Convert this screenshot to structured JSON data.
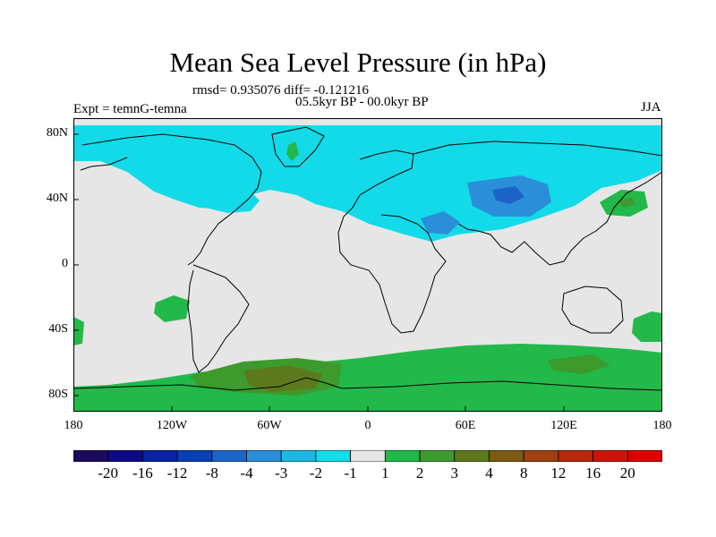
{
  "title": "Mean Sea Level Pressure (in hPa)",
  "subtitle": {
    "stats": "rmsd= 0.935076 diff= -0.121216",
    "period": "05.5kyr BP - 00.0kyr BP",
    "experiment": "Expt = temnG-temna",
    "season": "JJA"
  },
  "axes": {
    "lat_labels": [
      "80N",
      "40N",
      "0",
      "40S",
      "80S"
    ],
    "lon_labels": [
      "180",
      "120W",
      "60W",
      "0",
      "60E",
      "120E",
      "180"
    ]
  },
  "colorbar": {
    "labels": [
      "-20",
      "-16",
      "-12",
      "-8",
      "-4",
      "-3",
      "-2",
      "-1",
      "1",
      "2",
      "3",
      "4",
      "8",
      "12",
      "16",
      "20"
    ],
    "colors": [
      "#1c0a5e",
      "#0b0a86",
      "#0a22a8",
      "#0a40b6",
      "#1a64c8",
      "#2a8ed8",
      "#1cb8e0",
      "#13dae8",
      "#e6e6e6",
      "#22b84a",
      "#3d9a2c",
      "#5c7a1c",
      "#7a5a14",
      "#9e4010",
      "#b8280c",
      "#cc1408",
      "#dd0000"
    ]
  },
  "chart_data": {
    "type": "map",
    "title": "Mean Sea Level Pressure (in hPa)",
    "variable": "Mean Sea Level Pressure",
    "units": "hPa",
    "season": "JJA",
    "experiment": "temnG-temna",
    "period": "05.5kyr BP - 00.0kyr BP",
    "rmsd": 0.935076,
    "diff": -0.121216,
    "lat_range": [
      -90,
      90
    ],
    "lon_range": [
      -180,
      180
    ],
    "contour_levels": [
      -20,
      -16,
      -12,
      -8,
      -4,
      -3,
      -2,
      -1,
      1,
      2,
      3,
      4,
      8,
      12,
      16,
      20
    ]
  }
}
